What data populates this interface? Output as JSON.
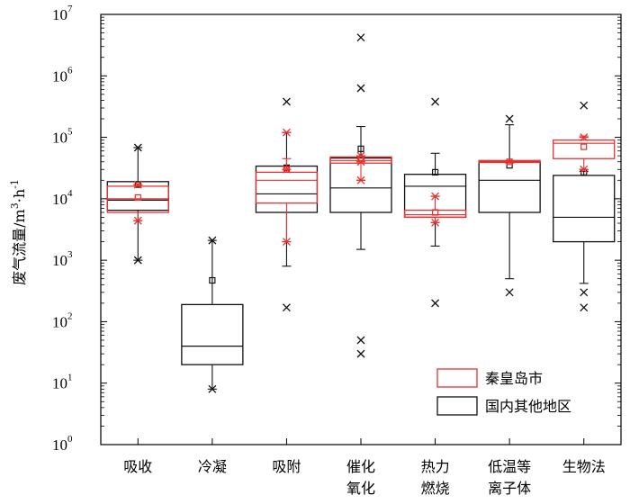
{
  "chart_data": {
    "type": "box",
    "y_scale": "log",
    "ylim": [
      1,
      10000000
    ],
    "yticks": [
      {
        "value": 1,
        "base": "10",
        "exp": "0"
      },
      {
        "value": 10,
        "base": "10",
        "exp": "1"
      },
      {
        "value": 100,
        "base": "10",
        "exp": "2"
      },
      {
        "value": 1000,
        "base": "10",
        "exp": "3"
      },
      {
        "value": 10000,
        "base": "10",
        "exp": "4"
      },
      {
        "value": 100000,
        "base": "10",
        "exp": "5"
      },
      {
        "value": 1000000,
        "base": "10",
        "exp": "6"
      },
      {
        "value": 10000000,
        "base": "10",
        "exp": "7"
      }
    ],
    "ylabel": {
      "main": "废气流量/m",
      "sup1": "3",
      "mid": "·h",
      "sup2": "-1"
    },
    "categories": [
      {
        "lines": [
          "吸收"
        ]
      },
      {
        "lines": [
          "冷凝"
        ]
      },
      {
        "lines": [
          "吸附"
        ]
      },
      {
        "lines": [
          "催化",
          "氧化"
        ]
      },
      {
        "lines": [
          "热力",
          "燃烧"
        ]
      },
      {
        "lines": [
          "低温等",
          "离子体"
        ]
      },
      {
        "lines": [
          "生物法"
        ]
      }
    ],
    "series": [
      {
        "name": "秦皇岛市",
        "color": "#e8312f",
        "boxes": [
          {
            "category": 0,
            "q1": 6000,
            "median": 10000,
            "q3": 16000,
            "mean": 10500,
            "whisker_low": 4400,
            "whisker_high": 17000,
            "outliers": [
              4400,
              17000
            ]
          },
          null,
          {
            "category": 2,
            "q1": 8500,
            "median": 20000,
            "q3": 27000,
            "mean": 30000,
            "whisker_low": 2000,
            "whisker_high": 45000,
            "outliers": [
              2000,
              120000,
              30000
            ]
          },
          {
            "category": 3,
            "q1": 38000,
            "median": 42000,
            "q3": 48000,
            "mean": 45000,
            "whisker_low": 20000,
            "whisker_high": 50000,
            "outliers": [
              20000,
              40000,
              50000
            ]
          },
          {
            "category": 4,
            "q1": 5000,
            "median": 5500,
            "q3": 6500,
            "mean": 6000,
            "whisker_low": 4100,
            "whisker_high": 11000,
            "outliers": [
              4100,
              11000
            ]
          },
          {
            "category": 5,
            "q1": 39000,
            "median": 40000,
            "q3": 42000,
            "mean": 40000,
            "whisker_low": 38000,
            "whisker_high": 42000,
            "outliers": []
          },
          {
            "category": 6,
            "q1": 45000,
            "median": 80000,
            "q3": 90000,
            "mean": 70000,
            "whisker_low": 30000,
            "whisker_high": 105000,
            "outliers": [
              30000,
              100000
            ]
          }
        ]
      },
      {
        "name": "国内其他地区",
        "color": "#111111",
        "boxes": [
          {
            "category": 0,
            "q1": 6500,
            "median": 9500,
            "q3": 19000,
            "mean": 17000,
            "whisker_low": 1000,
            "whisker_high": 68000,
            "outliers": [
              1000,
              68000
            ]
          },
          {
            "category": 1,
            "q1": 20,
            "median": 40,
            "q3": 190,
            "mean": 470,
            "whisker_low": 8,
            "whisker_high": 2100,
            "outliers": [
              8,
              2100
            ]
          },
          {
            "category": 2,
            "q1": 6000,
            "median": 12000,
            "q3": 34000,
            "mean": 32000,
            "whisker_low": 800,
            "whisker_high": 120000,
            "outliers": [
              170,
              380000
            ]
          },
          {
            "category": 3,
            "q1": 6000,
            "median": 15000,
            "q3": 46000,
            "mean": 65000,
            "whisker_low": 1500,
            "whisker_high": 150000,
            "outliers": [
              30,
              50,
              630000,
              4200000
            ]
          },
          {
            "category": 4,
            "q1": 5000,
            "median": 16000,
            "q3": 25000,
            "mean": 27000,
            "whisker_low": 1700,
            "whisker_high": 55000,
            "outliers": [
              200,
              380000
            ]
          },
          {
            "category": 5,
            "q1": 6000,
            "median": 20000,
            "q3": 40000,
            "mean": 35000,
            "whisker_low": 500,
            "whisker_high": 160000,
            "outliers": [
              300,
              200000
            ]
          },
          {
            "category": 6,
            "q1": 2000,
            "median": 5000,
            "q3": 24000,
            "mean": 27000,
            "whisker_low": 420,
            "whisker_high": 28000,
            "outliers": [
              170,
              300,
              330000
            ]
          }
        ]
      }
    ],
    "legend": {
      "position": "bottom-right",
      "entries": [
        "秦皇岛市",
        "国内其他地区"
      ]
    },
    "grid": false
  }
}
